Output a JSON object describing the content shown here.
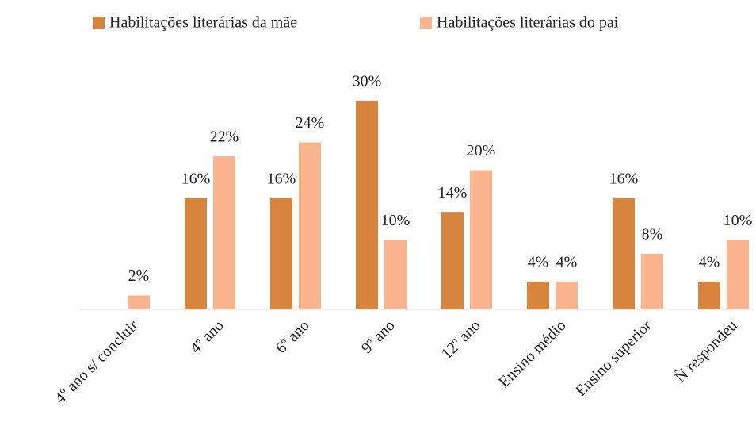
{
  "chart_data": {
    "type": "bar",
    "categories": [
      "4º ano s/ concluir",
      "4º ano",
      "6º ano",
      "9º ano",
      "12º ano",
      "Ensino médio",
      "Ensino superior",
      "Ñ respondeu"
    ],
    "series": [
      {
        "name": "Habilitações literárias da mãe",
        "color": "#d9843d",
        "values": [
          null,
          16,
          16,
          30,
          14,
          4,
          16,
          4
        ],
        "value_labels": [
          null,
          "16%",
          "16%",
          "30%",
          "14%",
          "4%",
          "16%",
          "4%"
        ]
      },
      {
        "name": "Habilitações literárias do pai",
        "color": "#f9b48e",
        "values": [
          2,
          22,
          24,
          10,
          20,
          4,
          8,
          10
        ],
        "value_labels": [
          "2%",
          "22%",
          "24%",
          "10%",
          "20%",
          "4%",
          "8%",
          "10%"
        ]
      }
    ],
    "legend": "top"
  }
}
